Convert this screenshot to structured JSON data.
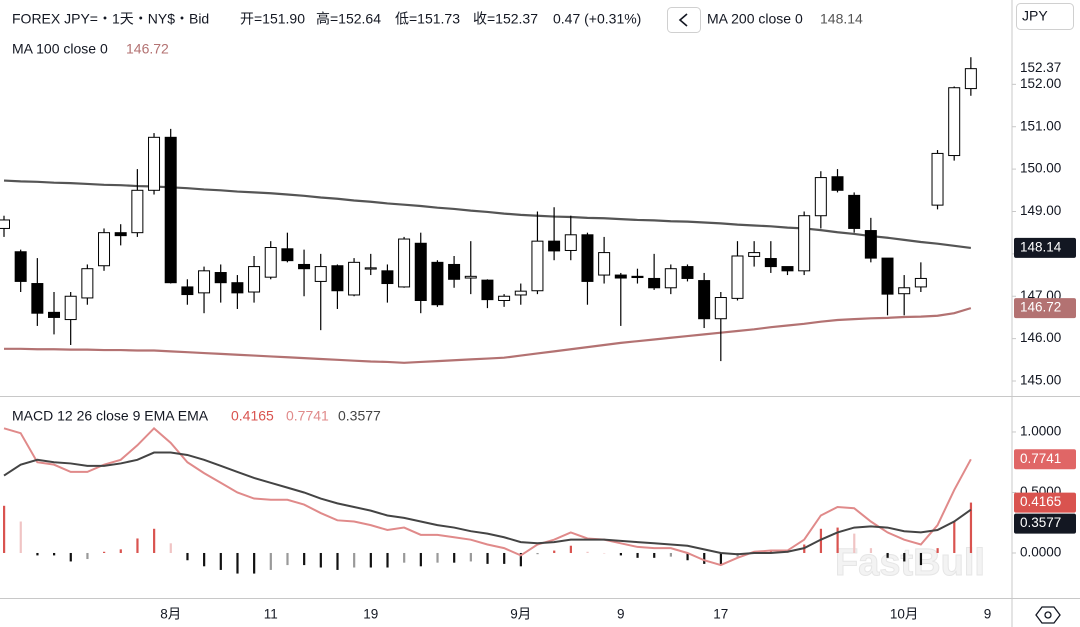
{
  "chart_data": [
    {
      "type": "candlestick",
      "title": "FOREX JPY=・1天・NY$・Bid",
      "ohlc_labels": [
        "开=151.90",
        "高=152.64",
        "低=151.73",
        "收=152.37"
      ],
      "change": "0.47 (+0.31%)",
      "currency": "JPY",
      "watermark": "FastBull",
      "categories": [
        null,
        null,
        null,
        null,
        null,
        null,
        null,
        null,
        null,
        null,
        "8月",
        null,
        null,
        null,
        null,
        null,
        "11",
        null,
        null,
        null,
        null,
        null,
        "19",
        null,
        null,
        null,
        null,
        null,
        null,
        null,
        null,
        "9月",
        null,
        null,
        null,
        null,
        null,
        "9",
        null,
        null,
        null,
        null,
        null,
        "17",
        null,
        null,
        null,
        null,
        null,
        null,
        null,
        null,
        null,
        null,
        "10月",
        null,
        null,
        null,
        null,
        "9"
      ],
      "open": [
        148.6,
        148.05,
        147.3,
        146.62,
        146.45,
        146.96,
        147.72,
        148.5,
        148.5,
        149.5,
        150.75,
        147.22,
        147.08,
        147.56,
        147.32,
        147.1,
        147.45,
        148.12,
        147.75,
        147.35,
        147.72,
        147.03,
        147.65,
        147.6,
        147.22,
        148.25,
        147.8,
        147.75,
        147.43,
        147.38,
        146.9,
        147.03,
        147.13,
        148.3,
        148.08,
        148.45,
        147.5,
        147.5,
        147.47,
        147.42,
        147.2,
        147.7,
        147.37,
        146.47,
        146.95,
        147.94,
        147.89,
        147.7,
        147.6,
        148.9,
        149.82,
        149.38,
        148.55,
        147.9,
        147.06,
        147.22,
        149.15,
        150.32,
        151.9,
        null
      ],
      "high": [
        148.9,
        148.1,
        147.9,
        147.1,
        147.1,
        147.75,
        148.6,
        148.7,
        150.0,
        150.85,
        150.95,
        147.4,
        147.7,
        147.75,
        147.5,
        147.95,
        148.3,
        148.5,
        148.1,
        148.0,
        147.75,
        147.9,
        148.0,
        147.75,
        148.4,
        148.5,
        147.85,
        147.95,
        148.3,
        147.4,
        147.05,
        147.3,
        149.0,
        149.1,
        148.9,
        148.5,
        148.4,
        147.55,
        147.65,
        148.0,
        147.75,
        147.75,
        147.55,
        147.1,
        148.3,
        148.3,
        148.3,
        147.7,
        149.0,
        149.95,
        150.0,
        149.45,
        148.85,
        147.9,
        147.5,
        147.8,
        150.45,
        151.95,
        152.64,
        null
      ],
      "low": [
        148.4,
        147.1,
        146.3,
        146.1,
        145.85,
        146.8,
        147.6,
        148.2,
        148.4,
        149.4,
        147.3,
        146.8,
        146.6,
        146.85,
        146.7,
        146.85,
        147.4,
        147.8,
        147.0,
        146.2,
        146.7,
        147.0,
        147.5,
        146.85,
        147.2,
        146.6,
        146.75,
        147.2,
        147.05,
        146.72,
        146.75,
        146.8,
        147.05,
        147.85,
        147.85,
        146.8,
        147.3,
        146.3,
        147.3,
        147.15,
        147.05,
        147.35,
        146.25,
        145.47,
        146.9,
        147.7,
        147.55,
        147.5,
        147.5,
        148.6,
        149.45,
        148.5,
        147.8,
        146.55,
        146.55,
        147.1,
        149.05,
        150.2,
        151.73,
        null
      ],
      "close": [
        148.8,
        147.35,
        146.6,
        146.5,
        147.0,
        147.65,
        148.5,
        148.43,
        149.5,
        150.75,
        147.32,
        147.04,
        147.6,
        147.32,
        147.08,
        147.7,
        148.15,
        147.84,
        147.65,
        147.7,
        147.13,
        147.8,
        147.67,
        147.3,
        148.35,
        146.9,
        146.8,
        147.4,
        147.47,
        146.92,
        147.0,
        147.12,
        148.3,
        148.07,
        148.45,
        147.35,
        148.03,
        147.43,
        147.45,
        147.2,
        147.65,
        147.42,
        146.47,
        146.97,
        147.95,
        148.03,
        147.7,
        147.6,
        148.9,
        149.8,
        149.5,
        148.6,
        147.9,
        147.05,
        147.2,
        147.42,
        150.37,
        151.92,
        152.37,
        null
      ],
      "up_color": "#ffffff",
      "down_color": "#000000",
      "series": [
        {
          "name": "MA 200 close 0",
          "color": "#555555",
          "values": [
            149.73,
            149.71,
            149.7,
            149.68,
            149.67,
            149.65,
            149.63,
            149.62,
            149.6,
            149.59,
            149.57,
            149.55,
            149.52,
            149.5,
            149.47,
            149.45,
            149.43,
            149.4,
            149.37,
            149.33,
            149.3,
            149.26,
            149.23,
            149.19,
            149.16,
            149.13,
            149.09,
            149.06,
            149.02,
            148.99,
            148.95,
            148.92,
            148.9,
            148.88,
            148.87,
            148.85,
            148.84,
            148.82,
            148.8,
            148.79,
            148.77,
            148.76,
            148.74,
            148.72,
            148.69,
            148.67,
            148.65,
            148.62,
            148.6,
            148.56,
            148.51,
            148.47,
            148.42,
            148.38,
            148.33,
            148.28,
            148.24,
            148.19,
            148.14,
            null
          ]
        },
        {
          "name": "MA 100 close 0",
          "color": "#b37272",
          "values": [
            145.76,
            145.76,
            145.75,
            145.75,
            145.74,
            145.74,
            145.73,
            145.73,
            145.72,
            145.72,
            145.7,
            145.68,
            145.66,
            145.64,
            145.62,
            145.6,
            145.58,
            145.56,
            145.54,
            145.52,
            145.5,
            145.48,
            145.46,
            145.45,
            145.43,
            145.45,
            145.47,
            145.49,
            145.51,
            145.53,
            145.55,
            145.6,
            145.65,
            145.7,
            145.75,
            145.8,
            145.85,
            145.9,
            145.94,
            145.98,
            146.02,
            146.06,
            146.1,
            146.14,
            146.18,
            146.22,
            146.27,
            146.31,
            146.35,
            146.4,
            146.44,
            146.46,
            146.48,
            146.49,
            146.51,
            146.52,
            146.54,
            146.6,
            146.72,
            null
          ]
        }
      ],
      "ylim": [
        144.67,
        153.99
      ],
      "yticks": [
        {
          "value": 145,
          "label": "145.00"
        },
        {
          "value": 146,
          "label": "146.00"
        },
        {
          "value": 147,
          "label": "147.00"
        },
        {
          "value": 148,
          "label": "148.00"
        },
        {
          "value": 149,
          "label": "149.00"
        },
        {
          "value": 150,
          "label": "150.00"
        },
        {
          "value": 151,
          "label": "151.00"
        },
        {
          "value": 152,
          "label": "152.00"
        }
      ]
    },
    {
      "type": "macd",
      "title": "MACD 12 26 close 9 EMA EMA",
      "series": [
        {
          "kind": "histogram",
          "colors": [
            "#d9534f",
            "#f0c4c4",
            "#111111",
            "#999999"
          ],
          "color": "#d9534f",
          "values": [
            0.39,
            0.26,
            -0.02,
            -0.02,
            -0.07,
            -0.05,
            0.01,
            0.03,
            0.12,
            0.2,
            0.08,
            -0.06,
            -0.11,
            -0.14,
            -0.17,
            -0.17,
            -0.14,
            -0.1,
            -0.1,
            -0.12,
            -0.14,
            -0.12,
            -0.12,
            -0.12,
            -0.08,
            -0.11,
            -0.08,
            -0.08,
            -0.07,
            -0.09,
            -0.09,
            -0.11,
            -0.01,
            0.02,
            0.06,
            0.01,
            0.0,
            -0.02,
            -0.04,
            -0.04,
            -0.03,
            -0.06,
            -0.09,
            -0.1,
            -0.03,
            0.01,
            0.02,
            0.01,
            0.07,
            0.2,
            0.21,
            0.16,
            0.04,
            -0.04,
            -0.07,
            -0.1,
            0.04,
            0.26,
            0.4165,
            null
          ]
        },
        {
          "kind": "line",
          "color": "#e08a8a",
          "values": [
            1.03,
            0.99,
            0.75,
            0.73,
            0.67,
            0.67,
            0.73,
            0.77,
            0.89,
            1.03,
            0.91,
            0.75,
            0.66,
            0.58,
            0.5,
            0.45,
            0.44,
            0.44,
            0.4,
            0.33,
            0.27,
            0.26,
            0.23,
            0.19,
            0.21,
            0.15,
            0.15,
            0.13,
            0.11,
            0.07,
            0.04,
            -0.02,
            0.07,
            0.11,
            0.17,
            0.12,
            0.11,
            0.08,
            0.05,
            0.04,
            0.04,
            0.0,
            -0.06,
            -0.1,
            -0.04,
            0.01,
            0.02,
            0.02,
            0.11,
            0.31,
            0.38,
            0.37,
            0.26,
            0.17,
            0.11,
            0.07,
            0.23,
            0.52,
            0.7741,
            null
          ]
        },
        {
          "kind": "line",
          "color": "#444444",
          "values": [
            0.64,
            0.73,
            0.77,
            0.75,
            0.74,
            0.72,
            0.72,
            0.74,
            0.77,
            0.83,
            0.83,
            0.81,
            0.77,
            0.72,
            0.67,
            0.62,
            0.58,
            0.54,
            0.5,
            0.45,
            0.41,
            0.38,
            0.35,
            0.31,
            0.29,
            0.26,
            0.23,
            0.21,
            0.18,
            0.16,
            0.13,
            0.09,
            0.08,
            0.09,
            0.11,
            0.11,
            0.11,
            0.1,
            0.09,
            0.08,
            0.07,
            0.06,
            0.03,
            0.0,
            -0.01,
            0.0,
            0.0,
            0.01,
            0.04,
            0.11,
            0.17,
            0.21,
            0.22,
            0.21,
            0.18,
            0.17,
            0.19,
            0.26,
            0.3577,
            null
          ]
        }
      ],
      "ylim": [
        -0.372,
        1.289
      ],
      "yticks": [
        {
          "value": 0,
          "label": "0.0000"
        },
        {
          "value": 0.5,
          "label": "0.5000"
        },
        {
          "value": 1,
          "label": "1.0000"
        }
      ]
    }
  ]
}
